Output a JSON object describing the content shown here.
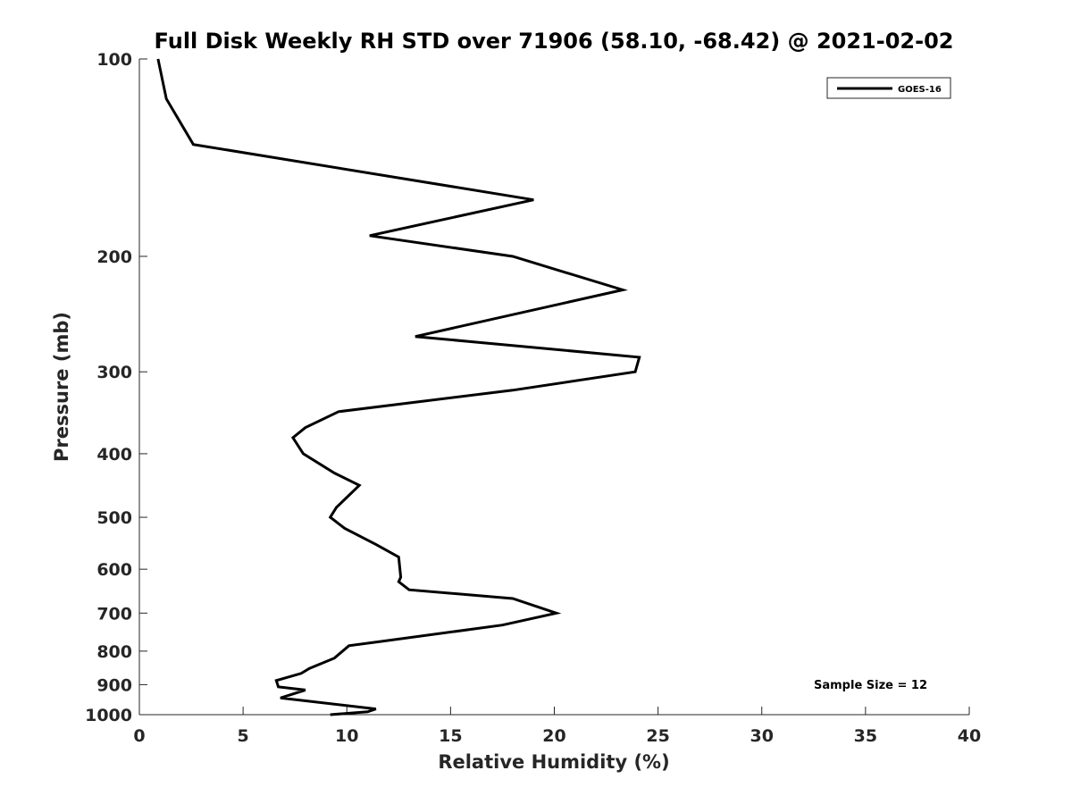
{
  "chart_data": {
    "type": "line",
    "title": "Full Disk Weekly RH STD over 71906 (58.10, -68.42) @ 2021-02-02",
    "xlabel": "Relative Humidity (%)",
    "ylabel": "Pressure (mb)",
    "xlim": [
      0,
      40
    ],
    "ylim": [
      1000,
      100
    ],
    "y_scale": "log",
    "y_reversed": true,
    "x_ticks": [
      "0",
      "5",
      "10",
      "15",
      "20",
      "25",
      "30",
      "35",
      "40"
    ],
    "y_ticks": [
      "100",
      "200",
      "300",
      "400",
      "500",
      "600",
      "700",
      "800",
      "900",
      "1000"
    ],
    "grid": false,
    "legend_position": "top-right",
    "annotation": "Sample Size = 12",
    "series": [
      {
        "name": "GOES-16",
        "color": "#000000",
        "points": [
          [
            0.9,
            100
          ],
          [
            1.3,
            115
          ],
          [
            2.6,
            135
          ],
          [
            19.0,
            164
          ],
          [
            11.1,
            186
          ],
          [
            18.0,
            200
          ],
          [
            23.3,
            225
          ],
          [
            13.3,
            265
          ],
          [
            24.1,
            285
          ],
          [
            23.9,
            300
          ],
          [
            18.0,
            320
          ],
          [
            9.6,
            345
          ],
          [
            8.0,
            365
          ],
          [
            7.4,
            378
          ],
          [
            7.9,
            400
          ],
          [
            9.4,
            428
          ],
          [
            10.6,
            447
          ],
          [
            9.5,
            483
          ],
          [
            9.2,
            500
          ],
          [
            9.9,
            520
          ],
          [
            11.4,
            550
          ],
          [
            12.5,
            575
          ],
          [
            12.6,
            617
          ],
          [
            12.5,
            627
          ],
          [
            13.0,
            645
          ],
          [
            18.0,
            665
          ],
          [
            20.1,
            700
          ],
          [
            17.5,
            730
          ],
          [
            11.7,
            773
          ],
          [
            10.1,
            785
          ],
          [
            9.4,
            820
          ],
          [
            8.2,
            850
          ],
          [
            7.8,
            865
          ],
          [
            6.6,
            887
          ],
          [
            6.7,
            907
          ],
          [
            8.0,
            917
          ],
          [
            6.8,
            943
          ],
          [
            11.4,
            980
          ],
          [
            11.0,
            990
          ],
          [
            9.2,
            1000
          ]
        ]
      }
    ]
  }
}
